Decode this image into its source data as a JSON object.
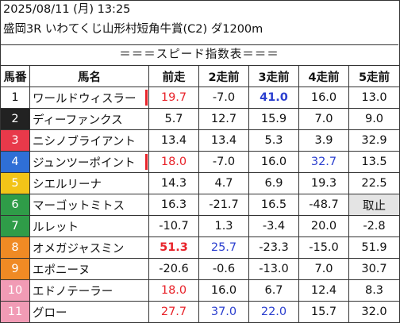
{
  "header": {
    "line1": "2025/08/11 (月) 13:25",
    "line2": "盛岡3R いわてくじ山形村短角牛賞(C2) ダ1200m"
  },
  "banner": "＝＝＝スピード指数表＝＝＝",
  "columns": [
    "馬番",
    "馬名",
    "前走",
    "2走前",
    "3走前",
    "4走前",
    "5走前"
  ],
  "colors": {
    "red_text": "#e8232a",
    "blue_text": "#2b3fcf"
  },
  "rows": [
    {
      "no": "1",
      "name": "ワールドウィスラー",
      "bg": "#ffffff",
      "fg": "#111111",
      "marked": true,
      "vals": [
        {
          "t": "19.7",
          "c": "red"
        },
        {
          "t": "-7.0"
        },
        {
          "t": "41.0",
          "c": "blue",
          "b": true
        },
        {
          "t": "16.0"
        },
        {
          "t": "13.0"
        }
      ]
    },
    {
      "no": "2",
      "name": "ディーファンクス",
      "bg": "#222222",
      "fg": "#ffffff",
      "vals": [
        {
          "t": "5.7"
        },
        {
          "t": "12.7"
        },
        {
          "t": "15.9"
        },
        {
          "t": "7.0"
        },
        {
          "t": "9.0"
        }
      ]
    },
    {
      "no": "3",
      "name": "ニシノブライアント",
      "bg": "#e8394a",
      "fg": "#ffffff",
      "vals": [
        {
          "t": "13.4"
        },
        {
          "t": "13.4"
        },
        {
          "t": "5.3"
        },
        {
          "t": "3.9"
        },
        {
          "t": "32.9"
        }
      ]
    },
    {
      "no": "4",
      "name": "ジュンツーポイント",
      "bg": "#2f6fd6",
      "fg": "#ffffff",
      "marked": true,
      "vals": [
        {
          "t": "18.0",
          "c": "red"
        },
        {
          "t": "-7.0"
        },
        {
          "t": "16.0"
        },
        {
          "t": "32.7",
          "c": "blue"
        },
        {
          "t": "13.5"
        }
      ]
    },
    {
      "no": "5",
      "name": "シエルリーナ",
      "bg": "#f2c418",
      "fg": "#ffffff",
      "vals": [
        {
          "t": "14.3"
        },
        {
          "t": "4.7"
        },
        {
          "t": "6.9"
        },
        {
          "t": "19.3"
        },
        {
          "t": "22.5"
        }
      ]
    },
    {
      "no": "6",
      "name": "マーゴットミトス",
      "bg": "#2f9c48",
      "fg": "#ffffff",
      "vals": [
        {
          "t": "16.3"
        },
        {
          "t": "-21.7"
        },
        {
          "t": "16.5"
        },
        {
          "t": "-48.7"
        },
        {
          "t": "取止",
          "grey": true
        }
      ]
    },
    {
      "no": "7",
      "name": "ルレット",
      "bg": "#2f9c48",
      "fg": "#ffffff",
      "vals": [
        {
          "t": "-10.7"
        },
        {
          "t": "1.3"
        },
        {
          "t": "-3.4"
        },
        {
          "t": "20.0"
        },
        {
          "t": "-2.8"
        }
      ]
    },
    {
      "no": "8",
      "name": "オメガジャスミン",
      "bg": "#f08a24",
      "fg": "#ffffff",
      "vals": [
        {
          "t": "51.3",
          "c": "red",
          "b": true
        },
        {
          "t": "25.7",
          "c": "blue"
        },
        {
          "t": "-23.3"
        },
        {
          "t": "-15.0"
        },
        {
          "t": "51.9"
        }
      ]
    },
    {
      "no": "9",
      "name": "エポニーヌ",
      "bg": "#f08a24",
      "fg": "#ffffff",
      "vals": [
        {
          "t": "-20.6"
        },
        {
          "t": "-0.6"
        },
        {
          "t": "-13.0"
        },
        {
          "t": "7.0"
        },
        {
          "t": "30.7"
        }
      ]
    },
    {
      "no": "10",
      "name": "エドノテーラー",
      "bg": "#f19bb5",
      "fg": "#ffffff",
      "vals": [
        {
          "t": "18.0",
          "c": "red"
        },
        {
          "t": "16.0"
        },
        {
          "t": "6.7"
        },
        {
          "t": "12.4"
        },
        {
          "t": "8.3"
        }
      ]
    },
    {
      "no": "11",
      "name": "グロー",
      "bg": "#f19bb5",
      "fg": "#ffffff",
      "vals": [
        {
          "t": "27.7",
          "c": "red"
        },
        {
          "t": "37.0",
          "c": "blue"
        },
        {
          "t": "22.0",
          "c": "blue"
        },
        {
          "t": "15.7"
        },
        {
          "t": "32.0"
        }
      ]
    }
  ]
}
